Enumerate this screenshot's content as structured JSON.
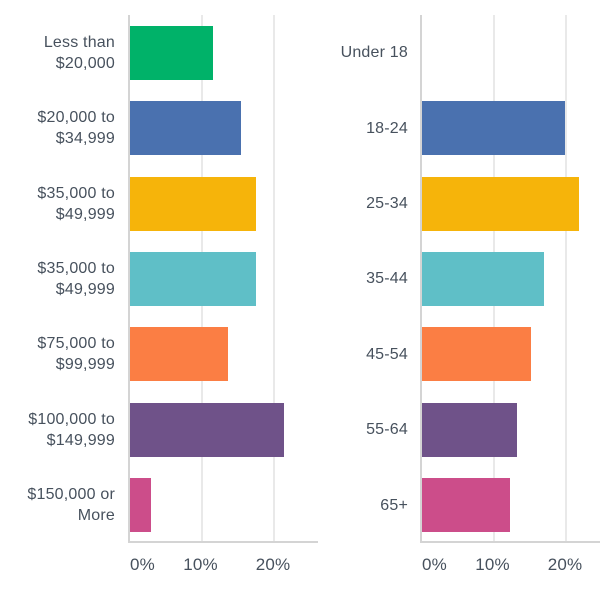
{
  "page": {
    "background": "#ffffff",
    "text_color": "#47515D",
    "grid_color": "#E9E9E9",
    "axis_color": "#D4D4D4"
  },
  "chart_data": [
    {
      "type": "bar",
      "orientation": "horizontal",
      "title": "",
      "xlabel": "",
      "ylabel": "",
      "categories": [
        "Less than $20,000",
        "$20,000 to $34,999",
        "$35,000 to $49,999",
        "$35,000 to $49,999",
        "$75,000 to $99,999",
        "$100,000 to $149,999",
        "$150,000 or More"
      ],
      "label_lines": [
        [
          "Less than",
          "$20,000"
        ],
        [
          "$20,000 to",
          "$34,999"
        ],
        [
          "$35,000 to",
          "$49,999"
        ],
        [
          "$35,000 to",
          "$49,999"
        ],
        [
          "$75,000 to",
          "$99,999"
        ],
        [
          "$100,000 to",
          "$149,999"
        ],
        [
          "$150,000 or",
          "More"
        ]
      ],
      "values": [
        11.5,
        15.3,
        17.4,
        17.4,
        13.5,
        21.3,
        2.9
      ],
      "bar_colors": [
        "#00B269",
        "#4A71AF",
        "#F6B40A",
        "#5FBFC7",
        "#FB7E44",
        "#6F5289",
        "#CC4D8A"
      ],
      "x_ticks": [
        {
          "value": 0,
          "label": "0%"
        },
        {
          "value": 10,
          "label": "10%"
        },
        {
          "value": 20,
          "label": "20%"
        }
      ],
      "xlim": [
        0,
        26.2
      ],
      "grid": true,
      "legend": false
    },
    {
      "type": "bar",
      "orientation": "horizontal",
      "title": "",
      "xlabel": "",
      "ylabel": "",
      "categories": [
        "Under 18",
        "18-24",
        "25-34",
        "35-44",
        "45-54",
        "55-64",
        "65+"
      ],
      "label_lines": [
        [
          "Under 18"
        ],
        [
          "18-24"
        ],
        [
          "25-34"
        ],
        [
          "35-44"
        ],
        [
          "45-54"
        ],
        [
          "55-64"
        ],
        [
          "65+"
        ]
      ],
      "values": [
        0,
        19.7,
        21.7,
        16.8,
        15.0,
        13.1,
        12.1
      ],
      "bar_colors": [
        "#00B269",
        "#4A71AF",
        "#F6B40A",
        "#5FBFC7",
        "#FB7E44",
        "#6F5289",
        "#CC4D8A"
      ],
      "x_ticks": [
        {
          "value": 0,
          "label": "0%"
        },
        {
          "value": 10,
          "label": "10%"
        },
        {
          "value": 20,
          "label": "20%"
        }
      ],
      "xlim": [
        0,
        24.8
      ],
      "grid": true,
      "legend": false
    }
  ]
}
